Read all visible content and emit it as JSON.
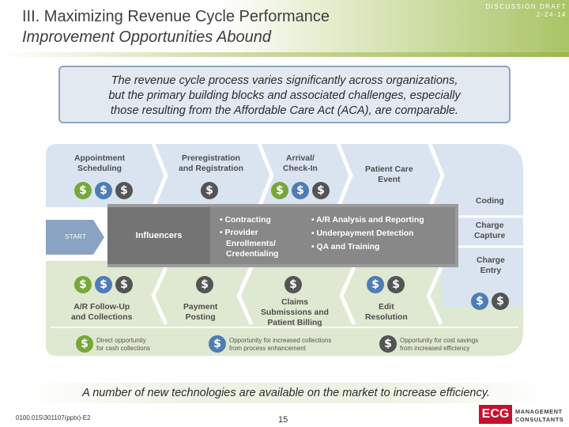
{
  "header": {
    "title_line1": "III.  Maximizing Revenue Cycle Performance",
    "title_line2": "Improvement Opportunities Abound",
    "draft_label": "DISCUSSION DRAFT",
    "draft_date": "2-24-14"
  },
  "intro": {
    "line1": "The revenue cycle process varies significantly across organizations,",
    "line2": "but the primary building blocks and associated challenges, especially",
    "line3": "those resulting from the Affordable Care Act (ACA), are comparable."
  },
  "diagram": {
    "start_label": "START",
    "steps": {
      "appointment_scheduling": [
        "Appointment",
        "Scheduling"
      ],
      "preregistration": [
        "Preregistration",
        "and Registration"
      ],
      "arrival": [
        "Arrival/",
        "Check-In"
      ],
      "patient_care": [
        "Patient Care",
        "Event"
      ],
      "coding": [
        "Coding"
      ],
      "charge_capture": [
        "Charge",
        "Capture"
      ],
      "charge_entry": [
        "Charge",
        "Entry"
      ],
      "edit_resolution": [
        "Edit",
        "Resolution"
      ],
      "claims_submissions": [
        "Claims",
        "Submissions and",
        "Patient Billing"
      ],
      "payment_posting": [
        "Payment",
        "Posting"
      ],
      "ar_followup": [
        "A/R Follow-Up",
        "and Collections"
      ]
    },
    "influencers": {
      "title": "Influencers",
      "left_items": [
        "• Contracting",
        "• Provider",
        "  Enrollments/",
        "  Credentialing"
      ],
      "right_items": [
        "• A/R Analysis and Reporting",
        "• Underpayment Detection",
        "• QA and Training"
      ]
    },
    "coin_symbol": "$",
    "legend": {
      "cash": [
        "Direct opportunity",
        "for cash collections"
      ],
      "process": [
        "Opportunity for increased collections",
        "from process enhancement"
      ],
      "cost": [
        "Opportunity for cost savings",
        "from increased efficiency"
      ]
    },
    "colors": {
      "top_band": "#d9e4f0",
      "bottom_band": "#dfe8d0",
      "influencer_strip": "#9b9b9b",
      "start_arrow": "#8aa3c2",
      "cash": "#77a73a",
      "process": "#4f7cb4",
      "cost": "#545454"
    }
  },
  "footer": {
    "note": "A number of new technologies are available on the market to increase efficiency.",
    "file_id": "0100.015\\301107(pptx)-E2",
    "page_number": "15",
    "logo_mark": "ECG",
    "logo_line1": "MANAGEMENT",
    "logo_line2": "CONSULTANTS"
  }
}
